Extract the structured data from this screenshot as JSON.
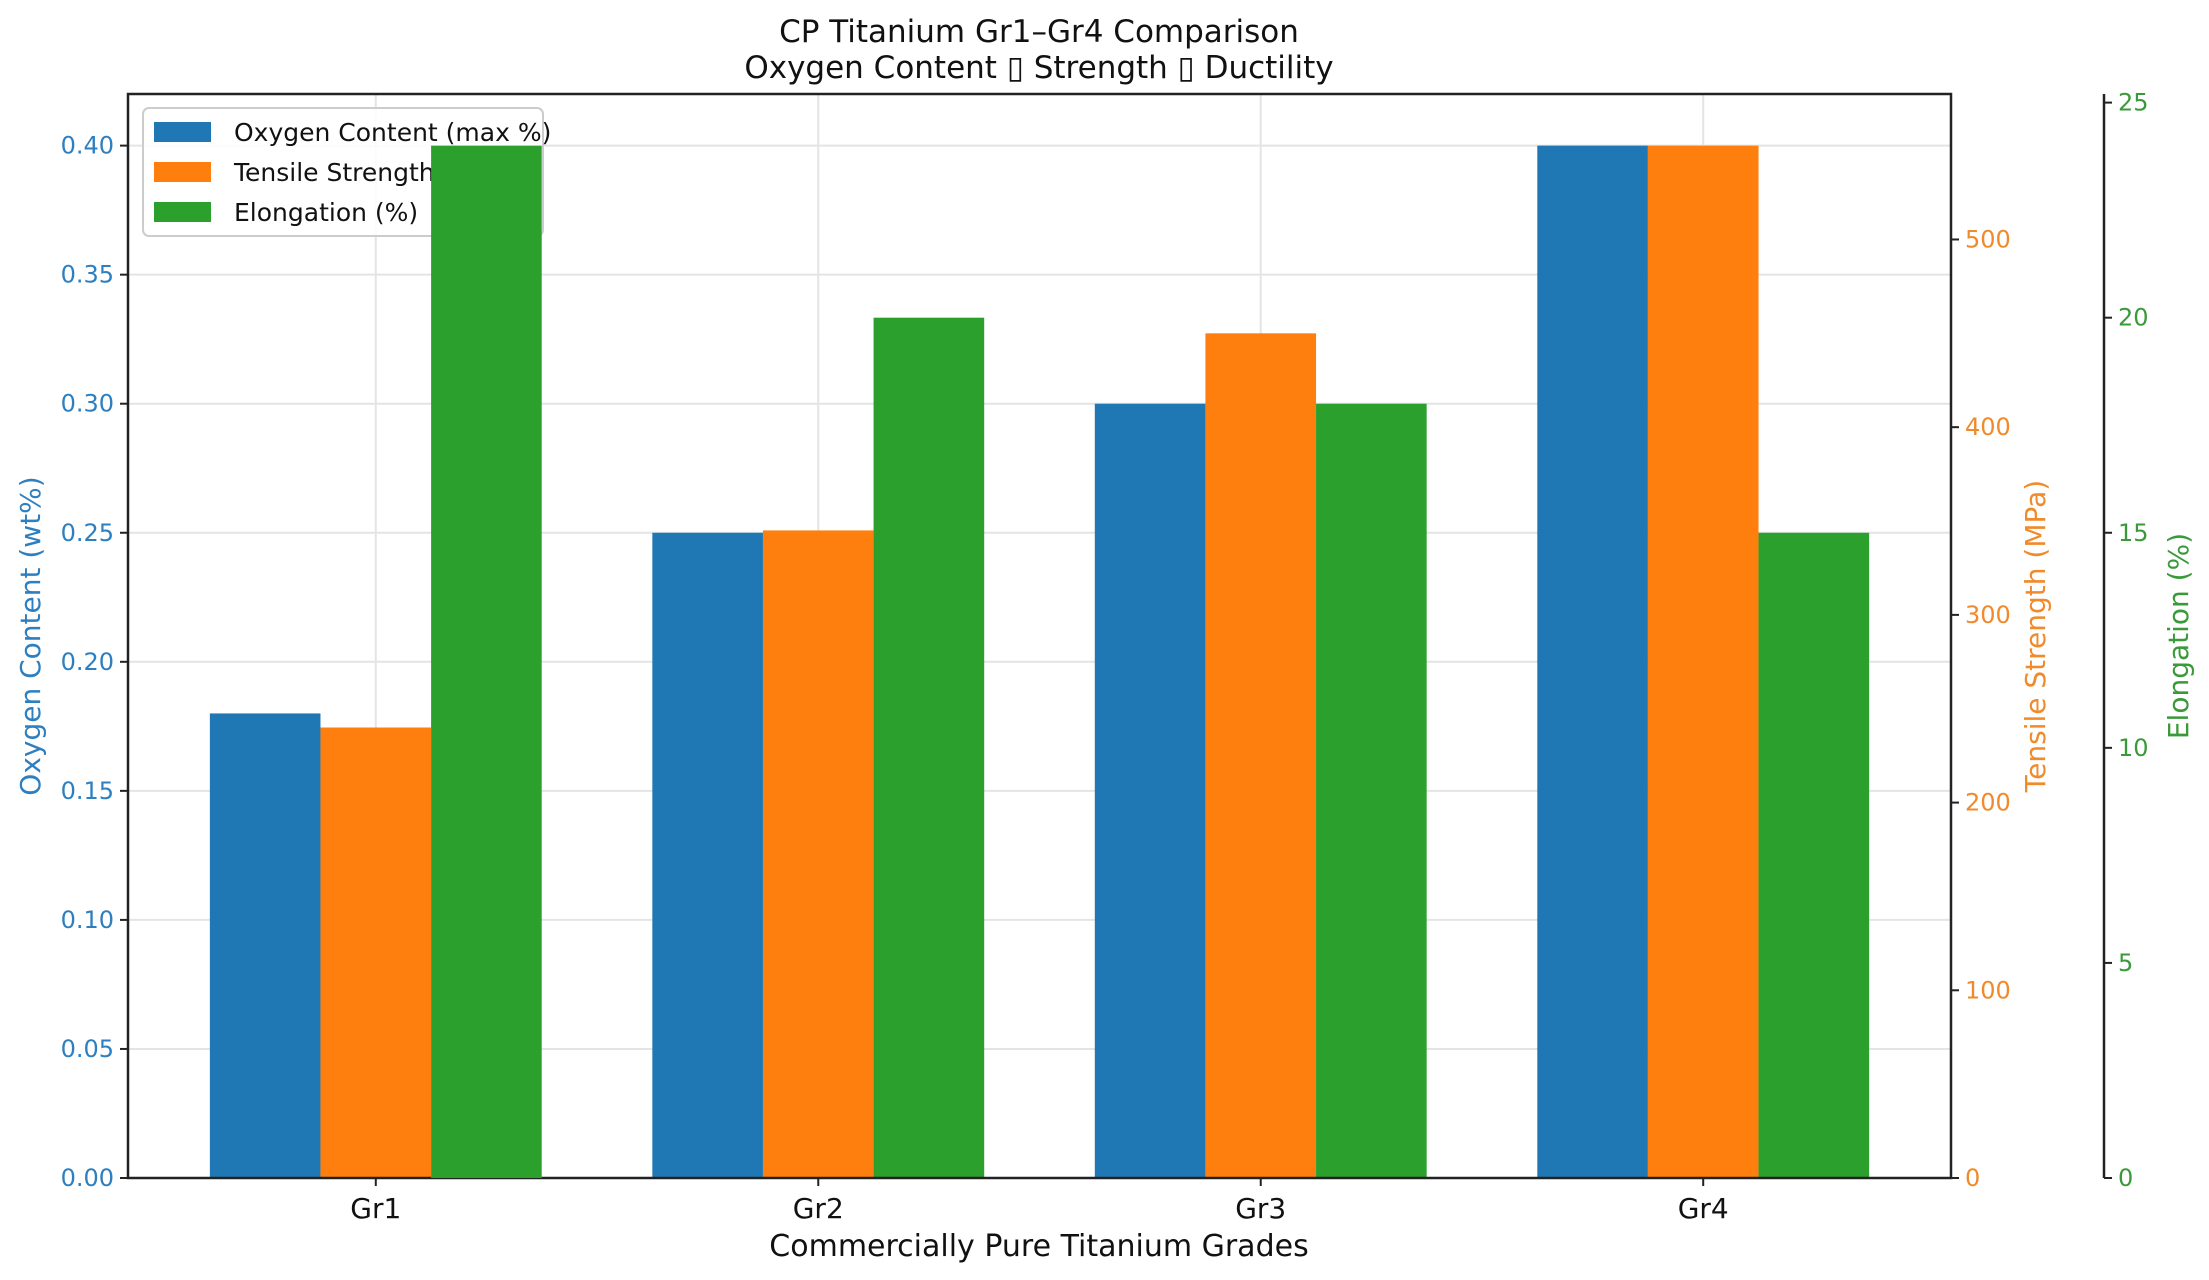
{
  "chart_data": {
    "type": "bar",
    "title": "CP Titanium Gr1–Gr4 Comparison",
    "subtitle": "Oxygen Content ▯ Strength ▯ Ductility",
    "xlabel": "Commercially Pure Titanium Grades",
    "categories": [
      "Gr1",
      "Gr2",
      "Gr3",
      "Gr4"
    ],
    "series": [
      {
        "name": "Oxygen Content (max %)",
        "values": [
          0.18,
          0.25,
          0.3,
          0.4
        ],
        "color": "#1f77b4",
        "axis": "left"
      },
      {
        "name": "Tensile Strength (MPa)",
        "values": [
          240,
          345,
          450,
          550
        ],
        "color": "#ff7f0e",
        "axis": "right"
      },
      {
        "name": "Elongation (%)",
        "values": [
          24,
          20,
          18,
          15
        ],
        "color": "#2ca02c",
        "axis": "right-outer"
      }
    ],
    "legend_labels": [
      "Oxygen Content (max %)",
      "Tensile Strength",
      "Elongation (%)"
    ],
    "axes": {
      "left": {
        "label": "Oxygen Content (wt%)",
        "ylim": [
          0,
          0.42
        ],
        "ticks": [
          "0.00",
          "0.05",
          "0.10",
          "0.15",
          "0.20",
          "0.25",
          "0.30",
          "0.35",
          "0.40"
        ],
        "color": "#2e7fbf"
      },
      "right": {
        "label": "Tensile Strength (MPa)",
        "ylim": [
          0,
          577.5
        ],
        "ticks": [
          "0",
          "100",
          "200",
          "300",
          "400",
          "500"
        ],
        "color": "#f08a2a"
      },
      "right-outer": {
        "label": "Elongation (%)",
        "ylim": [
          0,
          25.2
        ],
        "ticks": [
          "0",
          "5",
          "10",
          "15",
          "20",
          "25"
        ],
        "color": "#3a9a3a"
      }
    },
    "xlim": [
      -0.56,
      3.56
    ],
    "grid": true,
    "legend_position": "top-left"
  }
}
